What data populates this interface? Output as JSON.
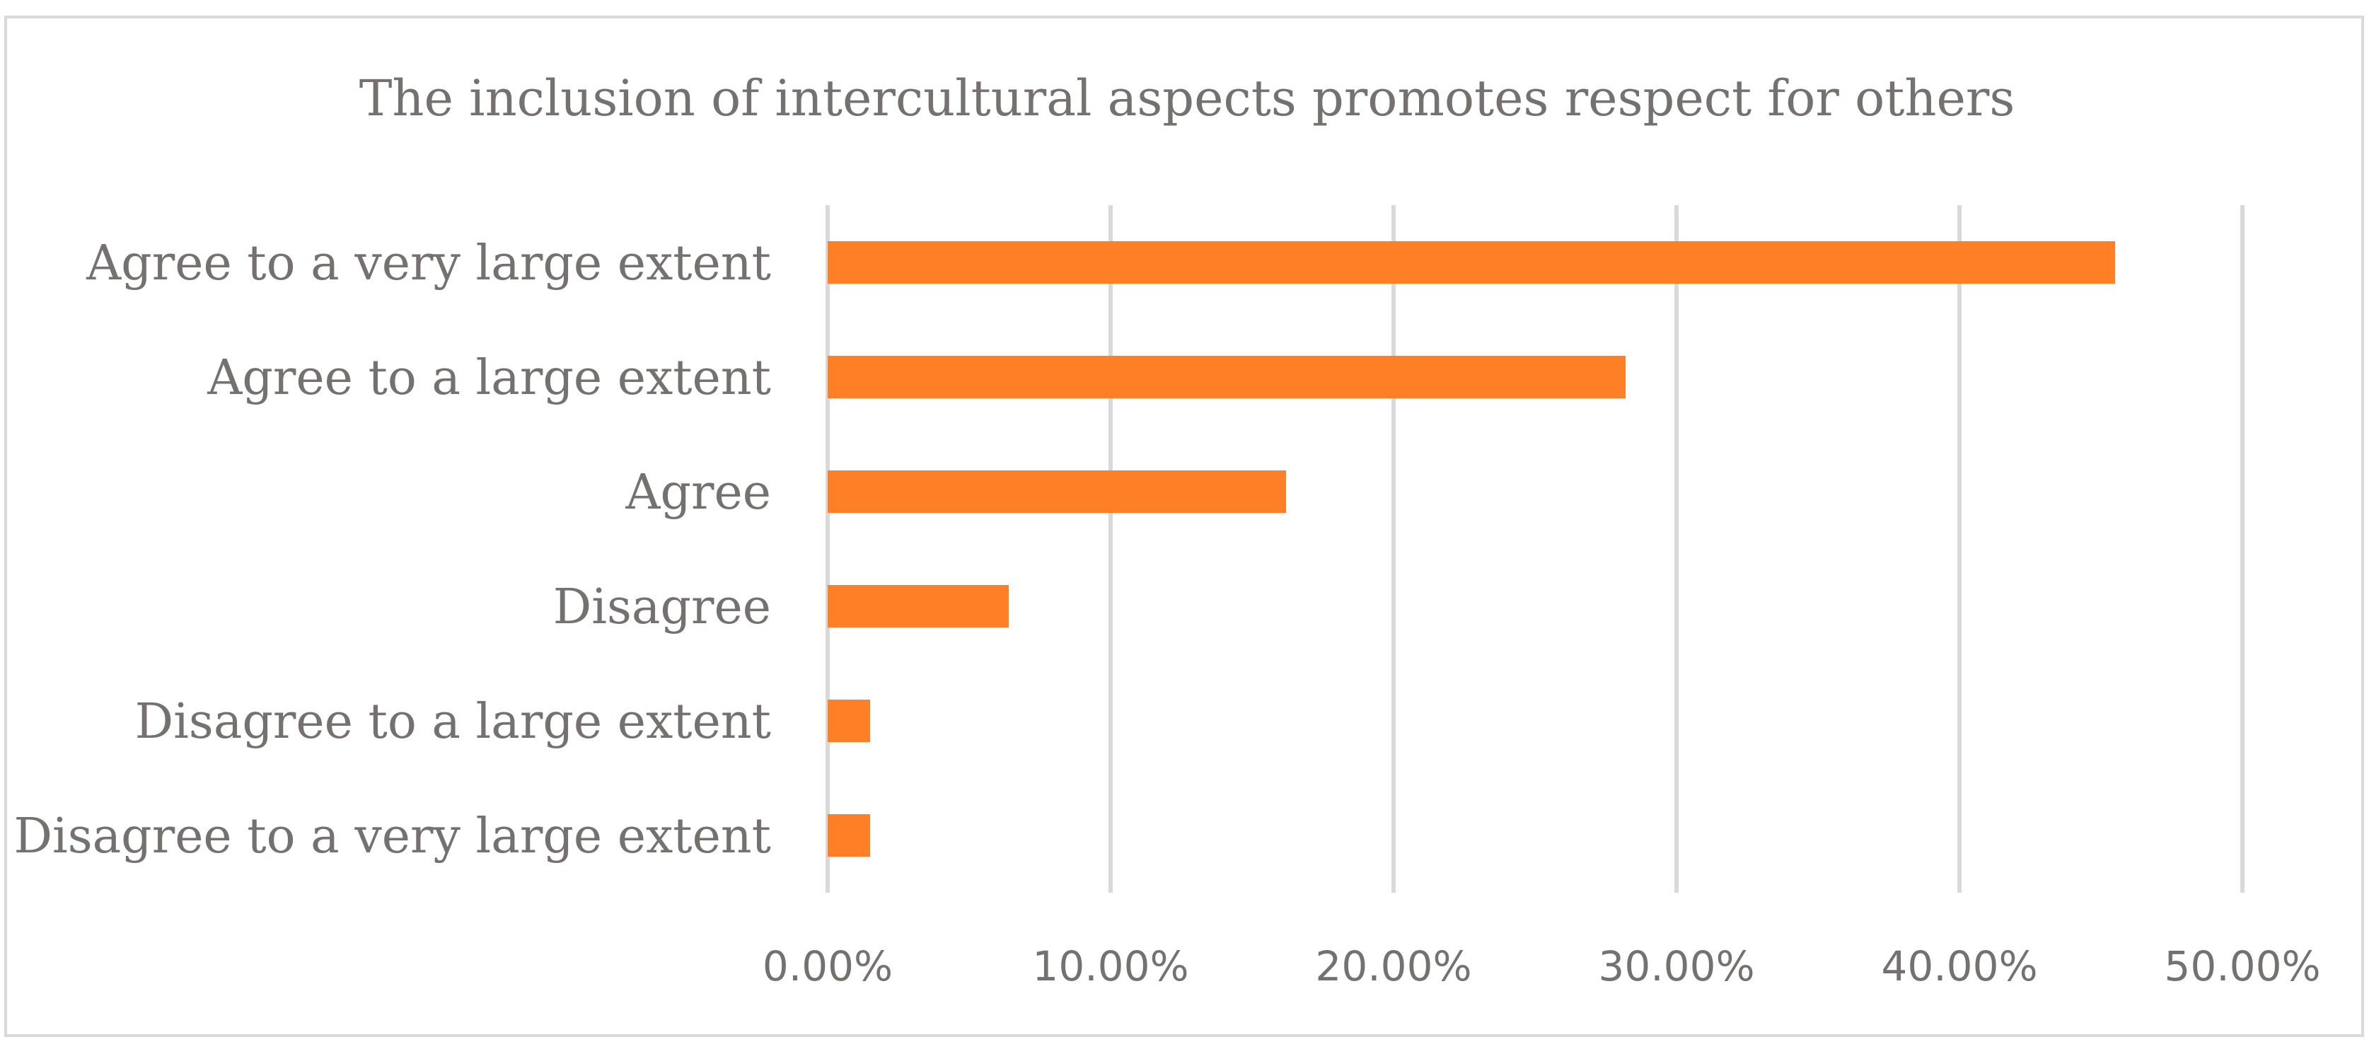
{
  "chart_data": {
    "type": "bar",
    "orientation": "horizontal",
    "title": "The inclusion of intercultural aspects promotes respect for others",
    "categories": [
      "Agree to a very large extent",
      "Agree to a large extent",
      "Agree",
      "Disagree",
      "Disagree to a large extent",
      "Disagree to a very large extent"
    ],
    "values": [
      45.5,
      28.2,
      16.2,
      6.4,
      1.5,
      1.5
    ],
    "xlim": [
      0,
      50
    ],
    "xticks": [
      0,
      10,
      20,
      30,
      40,
      50
    ],
    "xtick_labels": [
      "0.00%",
      "10.00%",
      "20.00%",
      "30.00%",
      "40.00%",
      "50.00%"
    ],
    "grid": "vertical",
    "legend": "none",
    "colors": {
      "bar": "#ff7f27",
      "grid": "#d9d9d9",
      "text": "#767171",
      "border": "#d9d9d9"
    }
  }
}
